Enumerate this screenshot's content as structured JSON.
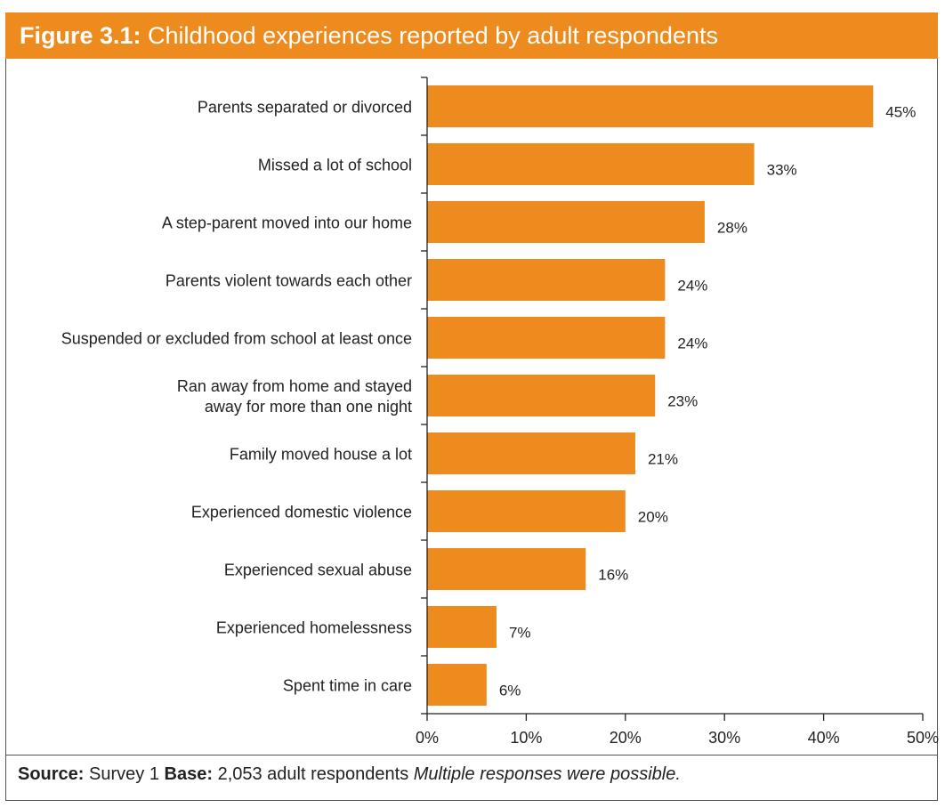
{
  "header": {
    "figure_label": "Figure 3.1:",
    "title_text": "Childhood experiences reported by adult respondents"
  },
  "colors": {
    "accent": "#EE8B1E",
    "bar": "#EE8B1E",
    "axis": "#222222",
    "text": "#222222"
  },
  "chart_data": {
    "type": "bar",
    "orientation": "horizontal",
    "title": "Childhood experiences reported by adult respondents",
    "categories": [
      "Parents separated or divorced",
      "Missed a lot of school",
      "A step-parent moved into our home",
      "Parents violent towards each other",
      "Suspended or excluded from school at least once",
      "Ran away from home and stayed\naway for more than one night",
      "Family moved house a lot",
      "Experienced domestic violence",
      "Experienced sexual abuse",
      "Experienced homelessness",
      "Spent time in care"
    ],
    "values": [
      45,
      33,
      28,
      24,
      24,
      23,
      21,
      20,
      16,
      7,
      6
    ],
    "value_labels": [
      "45%",
      "33%",
      "28%",
      "24%",
      "24%",
      "23%",
      "21%",
      "20%",
      "16%",
      "7%",
      "6%"
    ],
    "xlim": [
      0,
      50
    ],
    "x_ticks": [
      0,
      10,
      20,
      30,
      40,
      50
    ],
    "x_tick_labels": [
      "0%",
      "10%",
      "20%",
      "30%",
      "40%",
      "50%"
    ],
    "grid": false,
    "xlabel": "",
    "ylabel": ""
  },
  "footer": {
    "source_label": "Source:",
    "source_value": "Survey 1",
    "base_label": "Base:",
    "base_value": "2,053 adult respondents",
    "note": "Multiple responses were possible."
  }
}
